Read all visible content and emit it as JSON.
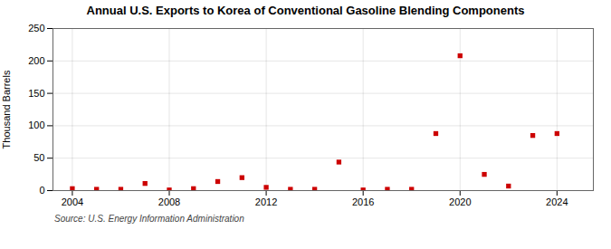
{
  "chart_data": {
    "type": "scatter",
    "title": "Annual U.S. Exports to Korea of Conventional Gasoline Blending Components",
    "ylabel": "Thousand Barrels",
    "source": "Source: U.S. Energy Information Administration",
    "x": [
      2004,
      2005,
      2006,
      2007,
      2008,
      2009,
      2010,
      2011,
      2012,
      2013,
      2014,
      2015,
      2016,
      2017,
      2018,
      2019,
      2020,
      2021,
      2022,
      2023,
      2024
    ],
    "values": [
      3,
      2,
      2,
      11,
      1,
      3,
      14,
      20,
      5,
      2,
      2,
      44,
      1,
      2,
      2,
      88,
      208,
      25,
      7,
      85,
      88
    ],
    "color": "#cc0000",
    "marker": "square",
    "xlim": [
      2003.2,
      2025.5
    ],
    "ylim": [
      0,
      250
    ],
    "xticks": [
      2004,
      2008,
      2012,
      2016,
      2020,
      2024
    ],
    "yticks": [
      0,
      50,
      100,
      150,
      200,
      250
    ],
    "grid": true
  }
}
